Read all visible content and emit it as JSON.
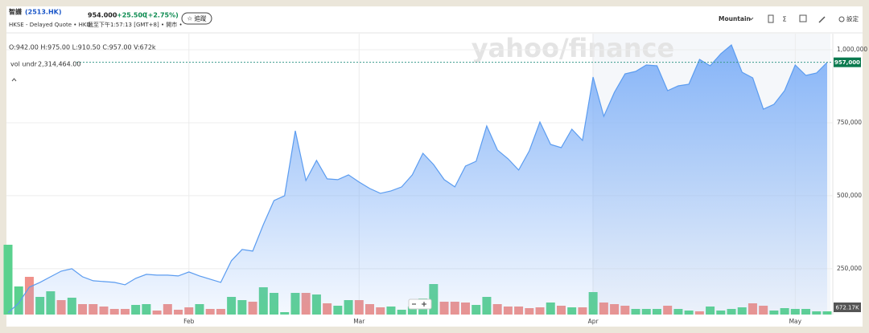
{
  "header": {
    "name": "智譜",
    "symbol": "(2513.HK)",
    "price": "954.000",
    "change": "+25.500",
    "change_pct": "(+2.75%)",
    "follow": "☆ 追蹤",
    "exchange": "HKSE - Delayed Quote • HKD",
    "time": "截至下午1:57:13 [GMT+8] • 開市 •"
  },
  "toolbar": {
    "chart_type": "Mountain",
    "sum": "Σ",
    "settings": "設定"
  },
  "chart_data": {
    "type": "area",
    "watermark": "yahoo/finance",
    "ohlc": "O:942.00 H:975.00 L:910.50 C:957.00 V:672k",
    "categories": [
      null,
      null,
      null,
      null,
      null,
      null,
      null,
      null,
      null,
      null,
      null,
      null,
      null,
      null,
      null,
      null,
      null,
      "Feb",
      null,
      null,
      null,
      null,
      null,
      null,
      null,
      null,
      null,
      null,
      null,
      null,
      null,
      null,
      null,
      "Mar",
      null,
      null,
      null,
      null,
      null,
      null,
      null,
      null,
      null,
      null,
      null,
      null,
      null,
      null,
      null,
      null,
      null,
      null,
      null,
      null,
      null,
      "Apr",
      null,
      null,
      null,
      null,
      null,
      null,
      null,
      null,
      null,
      null,
      null,
      null,
      null,
      null,
      null,
      null,
      null,
      null,
      "May",
      null,
      null,
      null
    ],
    "series": [
      {
        "name": "vol undr",
        "legend_value": "2,314,464.00",
        "color": "#5b9cf0",
        "values": [
          99000,
          131900,
          186800,
          203300,
          222500,
          241800,
          250000,
          222500,
          208800,
          206000,
          203300,
          195000,
          217000,
          230800,
          228000,
          228000,
          225300,
          239000,
          225300,
          214300,
          203300,
          277500,
          316000,
          310400,
          401100,
          483500,
          500000,
          722500,
          552200,
          620900,
          557700,
          554900,
          571400,
          546700,
          524700,
          508200,
          516500,
          530200,
          571400,
          645600,
          607100,
          554900,
          530200,
          601600,
          618100,
          739000,
          656600,
          626400,
          587900,
          653800,
          752700,
          675800,
          664800,
          728000,
          689500,
          906600,
          772000,
          854400,
          917600,
          925800,
          947800,
          945000,
          859900,
          876400,
          881900,
          967000,
          945000,
          986300,
          1016500,
          923100,
          903800,
          796700,
          813200,
          859900,
          947800,
          912100,
          920300,
          957000
        ]
      }
    ],
    "price_tag": {
      "value": 957000,
      "label": "957,000",
      "color": "#0b7a4f"
    },
    "ylim": [
      93000,
      1055000
    ],
    "yticks": [
      {
        "value": 250000,
        "label": "250,000"
      },
      {
        "value": 500000,
        "label": "500,000"
      },
      {
        "value": 750000,
        "label": "750,000"
      },
      {
        "value": 1000000,
        "label": "1,000,000"
      }
    ],
    "grid": true,
    "volume": {
      "values": [
        14616000,
        5880000,
        7896000,
        3696000,
        4872000,
        3024000,
        3528000,
        2184000,
        2184000,
        1680000,
        1176000,
        1176000,
        2016000,
        2184000,
        840000,
        2184000,
        1008000,
        1512000,
        2184000,
        1176000,
        1176000,
        3696000,
        3024000,
        2688000,
        5712000,
        4536000,
        504000,
        4536000,
        4536000,
        4200000,
        2352000,
        1848000,
        3024000,
        3024000,
        2184000,
        1512000,
        1680000,
        1008000,
        1680000,
        3360000,
        6384000,
        2688000,
        2688000,
        2520000,
        2016000,
        3696000,
        2184000,
        1680000,
        1680000,
        1344000,
        1512000,
        2520000,
        1848000,
        1512000,
        1512000,
        4704000,
        2520000,
        2184000,
        1848000,
        1176000,
        1176000,
        1176000,
        1848000,
        1176000,
        840000,
        672000,
        1680000,
        840000,
        1176000,
        1512000,
        2352000,
        1848000,
        840000,
        1344000,
        1176000,
        1176000,
        672000,
        672170
      ],
      "colors": [
        "#5ad18e",
        "#5ad18e",
        "#f0918a",
        "#5ad18e",
        "#5ad18e",
        "#f0918a",
        "#5ad18e",
        "#f0918a",
        "#f0918a",
        "#f0918a",
        "#f0918a",
        "#f0918a",
        "#5ad18e",
        "#5ad18e",
        "#f0918a",
        "#f0918a",
        "#f0918a",
        "#f0918a",
        "#5ad18e",
        "#f0918a",
        "#f0918a",
        "#5ad18e",
        "#5ad18e",
        "#f0918a",
        "#5ad18e",
        "#5ad18e",
        "#5ad18e",
        "#5ad18e",
        "#f0918a",
        "#5ad18e",
        "#f0918a",
        "#5ad18e",
        "#5ad18e",
        "#f0918a",
        "#f0918a",
        "#f0918a",
        "#5ad18e",
        "#5ad18e",
        "#5ad18e",
        "#5ad18e",
        "#5ad18e",
        "#f0918a",
        "#f0918a",
        "#f0918a",
        "#5ad18e",
        "#5ad18e",
        "#f0918a",
        "#f0918a",
        "#f0918a",
        "#f0918a",
        "#f0918a",
        "#5ad18e",
        "#f0918a",
        "#5ad18e",
        "#f0918a",
        "#5ad18e",
        "#f0918a",
        "#f0918a",
        "#f0918a",
        "#5ad18e",
        "#5ad18e",
        "#5ad18e",
        "#f0918a",
        "#5ad18e",
        "#5ad18e",
        "#f0918a",
        "#5ad18e",
        "#5ad18e",
        "#5ad18e",
        "#5ad18e",
        "#f0918a",
        "#f0918a",
        "#5ad18e",
        "#5ad18e",
        "#5ad18e",
        "#5ad18e",
        "#5ad18e",
        "#5ad18e"
      ],
      "value_labels": [
        null,
        null,
        null,
        null,
        null,
        null,
        null,
        null,
        null,
        null,
        null,
        null,
        null,
        null,
        null,
        null,
        null,
        null,
        null,
        null,
        null,
        null,
        null,
        null,
        null,
        null,
        null,
        null,
        null,
        null,
        null,
        null,
        null,
        null,
        null,
        null,
        null,
        null,
        null,
        null,
        null,
        null,
        null,
        null,
        null,
        null,
        null,
        null,
        null,
        null,
        null,
        null,
        null,
        null,
        null,
        null,
        null,
        null,
        null,
        null,
        null,
        null,
        null,
        null,
        null,
        null,
        null,
        null,
        null,
        null,
        null,
        null,
        null,
        null,
        null,
        null,
        null,
        "672.17K"
      ]
    }
  }
}
